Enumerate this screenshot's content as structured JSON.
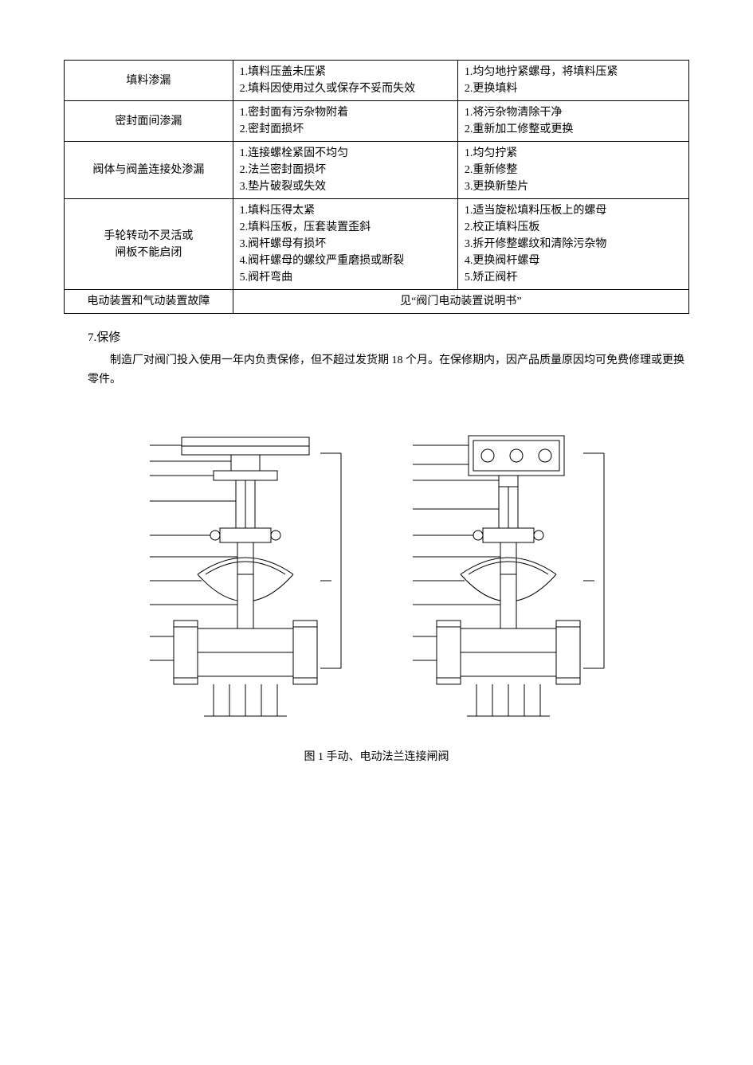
{
  "table": {
    "rows": [
      {
        "fault": "填料渗漏",
        "cause": "1.填料压盖未压紧\n2.填料因使用过久或保存不妥而失效",
        "remedy": "1.均匀地拧紧螺母，将填料压紧\n2.更换填料"
      },
      {
        "fault": "密封面间渗漏",
        "cause": "1.密封面有污杂物附着\n2.密封面损坏",
        "remedy": "1.将污杂物清除干净\n2.重新加工修整或更换"
      },
      {
        "fault": "阀体与阀盖连接处渗漏",
        "cause": "1.连接螺栓紧固不均匀\n2.法兰密封面损坏\n3.垫片破裂或失效",
        "remedy": "1.均匀拧紧\n2.重新修整\n3.更换新垫片"
      },
      {
        "fault": "手轮转动不灵活或\n闸板不能启闭",
        "cause": "1.填料压得太紧\n2.填料压板，压套装置歪斜\n3.阀杆螺母有损坏\n4.阀杆螺母的螺纹严重磨损或断裂\n5.阀杆弯曲",
        "remedy": "1.适当旋松填料压板上的螺母\n2.校正填料压板\n3.拆开修整螺纹和清除污杂物\n4.更换阀杆螺母\n5.矫正阀杆"
      },
      {
        "fault": "电动装置和气动装置故障",
        "merged": "见“阀门电动装置说明书”"
      }
    ]
  },
  "section": {
    "title": "7.保修",
    "body": "制造厂对阀门投入使用一年内负责保修，但不超过发货期 18 个月。在保修期内，因产品质量原因均可免费修理或更换零件。"
  },
  "figure_caption": "图 1  手动、电动法兰连接闸阀",
  "colors": {
    "border": "#000000",
    "text": "#000000",
    "bg": "#ffffff",
    "diagram_stroke": "#000000"
  }
}
